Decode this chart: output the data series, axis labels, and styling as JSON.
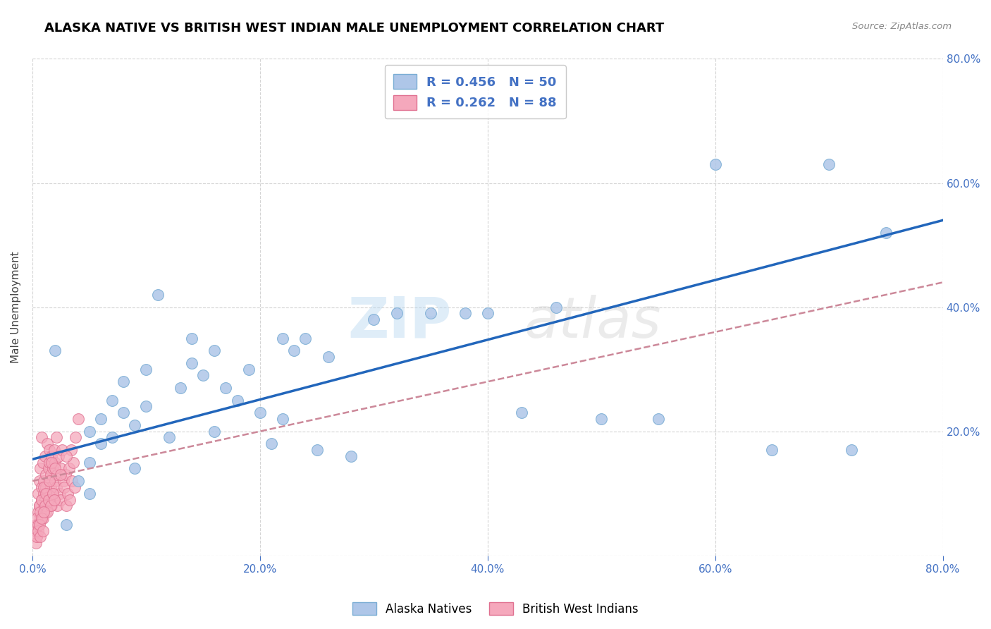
{
  "title": "ALASKA NATIVE VS BRITISH WEST INDIAN MALE UNEMPLOYMENT CORRELATION CHART",
  "source": "Source: ZipAtlas.com",
  "ylabel": "Male Unemployment",
  "xlim": [
    0.0,
    0.8
  ],
  "ylim": [
    0.0,
    0.8
  ],
  "xticks": [
    0.0,
    0.2,
    0.4,
    0.6,
    0.8
  ],
  "yticks": [
    0.0,
    0.2,
    0.4,
    0.6,
    0.8
  ],
  "xticklabels": [
    "0.0%",
    "20.0%",
    "40.0%",
    "60.0%",
    "80.0%"
  ],
  "right_yticklabels": [
    "",
    "20.0%",
    "40.0%",
    "60.0%",
    "80.0%"
  ],
  "watermark_zip": "ZIP",
  "watermark_atlas": "atlas",
  "alaska_color": "#aec6e8",
  "alaska_edge_color": "#7aadd4",
  "bwi_color": "#f5a8bc",
  "bwi_edge_color": "#e07090",
  "alaska_R": 0.456,
  "alaska_N": 50,
  "bwi_R": 0.262,
  "bwi_N": 88,
  "legend_text_color": "#4472c4",
  "alaska_line_color": "#2266bb",
  "bwi_line_color": "#cc8899",
  "grid_color": "#d0d0d0",
  "background_color": "#ffffff",
  "title_fontsize": 13,
  "axis_label_fontsize": 11,
  "tick_fontsize": 11,
  "legend_fontsize": 13,
  "tick_color": "#4472c4",
  "alaska_scatter_x": [
    0.02,
    0.03,
    0.04,
    0.05,
    0.05,
    0.05,
    0.06,
    0.06,
    0.07,
    0.07,
    0.08,
    0.08,
    0.09,
    0.09,
    0.1,
    0.1,
    0.11,
    0.12,
    0.13,
    0.14,
    0.14,
    0.15,
    0.16,
    0.16,
    0.17,
    0.18,
    0.19,
    0.2,
    0.21,
    0.22,
    0.22,
    0.23,
    0.24,
    0.25,
    0.26,
    0.28,
    0.3,
    0.32,
    0.35,
    0.38,
    0.4,
    0.43,
    0.46,
    0.5,
    0.55,
    0.6,
    0.65,
    0.7,
    0.72,
    0.75
  ],
  "alaska_scatter_y": [
    0.33,
    0.05,
    0.12,
    0.15,
    0.2,
    0.1,
    0.18,
    0.22,
    0.25,
    0.19,
    0.23,
    0.28,
    0.14,
    0.21,
    0.24,
    0.3,
    0.42,
    0.19,
    0.27,
    0.31,
    0.35,
    0.29,
    0.33,
    0.2,
    0.27,
    0.25,
    0.3,
    0.23,
    0.18,
    0.22,
    0.35,
    0.33,
    0.35,
    0.17,
    0.32,
    0.16,
    0.38,
    0.39,
    0.39,
    0.39,
    0.39,
    0.23,
    0.4,
    0.22,
    0.22,
    0.63,
    0.17,
    0.63,
    0.17,
    0.52
  ],
  "bwi_scatter_x": [
    0.003,
    0.004,
    0.005,
    0.005,
    0.006,
    0.006,
    0.007,
    0.007,
    0.008,
    0.008,
    0.008,
    0.009,
    0.009,
    0.01,
    0.01,
    0.01,
    0.011,
    0.011,
    0.012,
    0.012,
    0.012,
    0.013,
    0.013,
    0.014,
    0.014,
    0.015,
    0.015,
    0.015,
    0.016,
    0.016,
    0.017,
    0.017,
    0.018,
    0.018,
    0.019,
    0.019,
    0.02,
    0.02,
    0.021,
    0.021,
    0.022,
    0.022,
    0.023,
    0.024,
    0.025,
    0.025,
    0.026,
    0.027,
    0.028,
    0.029,
    0.03,
    0.031,
    0.032,
    0.033,
    0.034,
    0.035,
    0.036,
    0.037,
    0.038,
    0.04,
    0.003,
    0.004,
    0.005,
    0.006,
    0.007,
    0.008,
    0.009,
    0.01,
    0.011,
    0.012,
    0.013,
    0.014,
    0.015,
    0.016,
    0.017,
    0.018,
    0.019,
    0.02,
    0.025,
    0.03,
    0.003,
    0.004,
    0.005,
    0.006,
    0.007,
    0.008,
    0.009,
    0.01
  ],
  "bwi_scatter_y": [
    0.05,
    0.03,
    0.07,
    0.1,
    0.08,
    0.12,
    0.06,
    0.14,
    0.09,
    0.11,
    0.19,
    0.07,
    0.15,
    0.1,
    0.12,
    0.08,
    0.16,
    0.09,
    0.11,
    0.13,
    0.07,
    0.18,
    0.1,
    0.14,
    0.09,
    0.17,
    0.12,
    0.15,
    0.11,
    0.13,
    0.08,
    0.16,
    0.1,
    0.14,
    0.09,
    0.17,
    0.12,
    0.15,
    0.11,
    0.19,
    0.13,
    0.08,
    0.16,
    0.1,
    0.14,
    0.09,
    0.17,
    0.12,
    0.11,
    0.13,
    0.08,
    0.1,
    0.14,
    0.09,
    0.17,
    0.12,
    0.15,
    0.11,
    0.19,
    0.22,
    0.04,
    0.06,
    0.05,
    0.08,
    0.07,
    0.09,
    0.06,
    0.11,
    0.08,
    0.1,
    0.07,
    0.09,
    0.12,
    0.08,
    0.15,
    0.1,
    0.09,
    0.14,
    0.13,
    0.16,
    0.02,
    0.03,
    0.04,
    0.05,
    0.03,
    0.06,
    0.04,
    0.07
  ],
  "alaska_line_x0": 0.0,
  "alaska_line_y0": 0.155,
  "alaska_line_x1": 0.8,
  "alaska_line_y1": 0.54,
  "bwi_line_x0": 0.0,
  "bwi_line_y0": 0.12,
  "bwi_line_x1": 0.8,
  "bwi_line_y1": 0.44
}
